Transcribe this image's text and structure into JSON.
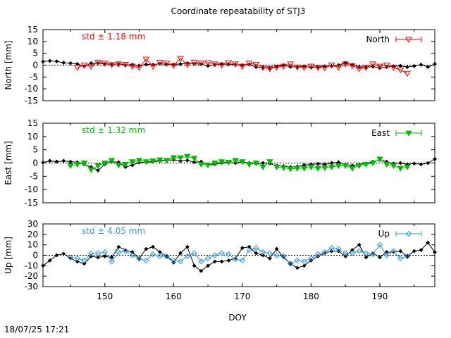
{
  "chart_data": [
    {
      "type": "line",
      "title": "Coordinate repeatability of STJ3",
      "ylabel": "North [mm]",
      "xlim": [
        141,
        198
      ],
      "ylim": [
        -15,
        15
      ],
      "yticks": [
        "15",
        "10",
        "5",
        "0",
        "-5",
        "-10",
        "-15"
      ],
      "annotation": "std ± 1.18 mm",
      "annotation_color": "#ff0000",
      "legend_position": "top-right",
      "series": [
        {
          "name": "",
          "color": "#000000",
          "marker": "diamond-filled",
          "x": [
            141,
            142,
            143,
            144,
            145,
            146,
            147,
            148,
            149,
            150,
            151,
            152,
            153,
            154,
            155,
            156,
            157,
            158,
            159,
            160,
            161,
            162,
            163,
            164,
            165,
            166,
            167,
            168,
            169,
            170,
            171,
            172,
            173,
            174,
            175,
            176,
            177,
            178,
            179,
            180,
            181,
            182,
            183,
            184,
            185,
            186,
            187,
            188,
            189,
            190,
            191,
            192,
            193,
            194,
            195,
            196,
            197,
            198
          ],
          "y": [
            1.5,
            1.8,
            1.6,
            1.0,
            0.8,
            0.5,
            -0.5,
            0.8,
            0.8,
            0.5,
            0.3,
            0.5,
            0.0,
            0.2,
            -0.2,
            0.3,
            0.2,
            0.6,
            0.3,
            0.2,
            0.5,
            0.8,
            0.6,
            0.4,
            -0.3,
            0.2,
            0.5,
            0.3,
            0.2,
            0.0,
            0.3,
            -0.8,
            -1.0,
            -1.3,
            -0.6,
            0.0,
            -0.7,
            -0.8,
            -0.5,
            -1.0,
            -0.8,
            -0.5,
            -0.4,
            0.0,
            1.0,
            0.2,
            -0.7,
            -0.9,
            -0.6,
            -1.2,
            -0.8,
            -0.5,
            -0.3,
            -0.8,
            -0.4,
            0.2,
            -0.8,
            0.5
          ]
        },
        {
          "name": "North",
          "color": "#ff0000",
          "marker": "triangle-down-open",
          "x": [
            146,
            147,
            148,
            149,
            150,
            151,
            152,
            153,
            154,
            155,
            156,
            157,
            158,
            159,
            160,
            161,
            162,
            163,
            164,
            165,
            166,
            167,
            168,
            169,
            170,
            171,
            172,
            173,
            174,
            175,
            176,
            177,
            178,
            179,
            180,
            181,
            182,
            183,
            184,
            185,
            186,
            187,
            188,
            189,
            190,
            191,
            192,
            193,
            194
          ],
          "y": [
            -1.0,
            0.0,
            -0.5,
            1.2,
            0.8,
            0.2,
            0.5,
            0.3,
            -0.5,
            -1.0,
            2.5,
            -0.5,
            1.2,
            0.8,
            -0.2,
            2.8,
            0.2,
            1.2,
            0.8,
            1.0,
            0.5,
            0.0,
            1.0,
            0.5,
            -0.5,
            0.8,
            0.3,
            -1.0,
            -1.5,
            -0.8,
            -0.5,
            0.5,
            -0.8,
            -1.0,
            -0.5,
            -1.0,
            -1.2,
            0.0,
            -1.0,
            0.5,
            -0.3,
            -1.5,
            -1.0,
            0.5,
            -0.5,
            0.0,
            -1.0,
            -2.0,
            -3.5
          ]
        }
      ]
    },
    {
      "type": "line",
      "title": "",
      "ylabel": "East [mm]",
      "xlim": [
        141,
        198
      ],
      "ylim": [
        -15,
        15
      ],
      "yticks": [
        "15",
        "10",
        "5",
        "0",
        "-5",
        "-10",
        "-15"
      ],
      "annotation": "std ± 1.32 mm",
      "annotation_color": "#00bb00",
      "legend_position": "top-right",
      "series": [
        {
          "name": "",
          "color": "#000000",
          "marker": "diamond-filled",
          "x": [
            141,
            142,
            143,
            144,
            145,
            146,
            147,
            148,
            149,
            150,
            151,
            152,
            153,
            154,
            155,
            156,
            157,
            158,
            159,
            160,
            161,
            162,
            163,
            164,
            165,
            166,
            167,
            168,
            169,
            170,
            171,
            172,
            173,
            174,
            175,
            176,
            177,
            178,
            179,
            180,
            181,
            182,
            183,
            184,
            185,
            186,
            187,
            188,
            189,
            190,
            191,
            192,
            193,
            194,
            195,
            196,
            197,
            198
          ],
          "y": [
            0.2,
            0.8,
            0.5,
            0.8,
            0.5,
            0.3,
            -0.5,
            -1.5,
            -2.8,
            -0.5,
            0.5,
            0.3,
            -1.5,
            -0.8,
            0.2,
            0.3,
            0.5,
            0.8,
            1.0,
            1.2,
            0.8,
            1.0,
            0.3,
            0.5,
            -0.8,
            -0.5,
            0.0,
            0.2,
            0.0,
            0.5,
            0.0,
            -0.3,
            0.0,
            -0.2,
            -1.0,
            -1.2,
            -1.5,
            -1.3,
            -0.8,
            -0.5,
            -0.3,
            -0.5,
            0.0,
            0.3,
            -0.5,
            -1.0,
            -0.5,
            -0.2,
            0.5,
            1.2,
            0.5,
            -0.2,
            0.0,
            -0.5,
            -0.2,
            -0.5,
            0.0,
            1.5
          ]
        },
        {
          "name": "East",
          "color": "#00bb00",
          "marker": "triangle-down-filled",
          "x": [
            145,
            146,
            147,
            148,
            149,
            150,
            151,
            152,
            153,
            154,
            155,
            156,
            157,
            158,
            159,
            160,
            161,
            162,
            163,
            164,
            165,
            166,
            167,
            168,
            169,
            170,
            171,
            172,
            173,
            174,
            175,
            176,
            177,
            178,
            179,
            180,
            181,
            182,
            183,
            184,
            185,
            186,
            187,
            188,
            189,
            190,
            191,
            192,
            193,
            194
          ],
          "y": [
            -1.0,
            -0.5,
            0.0,
            -2.5,
            -1.0,
            0.0,
            1.0,
            -0.8,
            -0.5,
            0.5,
            1.0,
            0.5,
            0.8,
            1.2,
            1.0,
            2.0,
            2.0,
            2.5,
            1.8,
            -0.5,
            -0.8,
            0.0,
            0.5,
            0.3,
            1.0,
            0.5,
            -0.5,
            0.0,
            -1.5,
            0.5,
            -1.5,
            -1.8,
            -2.2,
            -2.0,
            -2.0,
            -1.5,
            -2.0,
            -1.8,
            -1.5,
            -1.0,
            -1.0,
            -2.0,
            -1.0,
            -0.5,
            0.0,
            1.5,
            -0.5,
            -1.0,
            -2.0,
            -1.5
          ]
        }
      ]
    },
    {
      "type": "line",
      "title": "",
      "xlabel": "DOY",
      "ylabel": "Up [mm]",
      "xlim": [
        141,
        198
      ],
      "ylim": [
        -30,
        30
      ],
      "xticks": [
        "150",
        "160",
        "170",
        "180",
        "190"
      ],
      "yticks": [
        "30",
        "20",
        "10",
        "0",
        "-10",
        "-20",
        "-30"
      ],
      "annotation": "std ± 4.05 mm",
      "annotation_color": "#3399dd",
      "legend_position": "top-right",
      "series": [
        {
          "name": "",
          "color": "#000000",
          "marker": "diamond-filled",
          "x": [
            141,
            142,
            143,
            144,
            145,
            146,
            147,
            148,
            149,
            150,
            151,
            152,
            153,
            154,
            155,
            156,
            157,
            158,
            159,
            160,
            161,
            162,
            163,
            164,
            165,
            166,
            167,
            168,
            169,
            170,
            171,
            172,
            173,
            174,
            175,
            176,
            177,
            178,
            179,
            180,
            181,
            182,
            183,
            184,
            185,
            186,
            187,
            188,
            189,
            190,
            191,
            192,
            193,
            194,
            195,
            196,
            197,
            198
          ],
          "y": [
            -10.0,
            -5.0,
            0.0,
            1.5,
            -3.0,
            -6.0,
            -8.0,
            -1.0,
            -2.0,
            -1.0,
            -2.0,
            8.0,
            5.0,
            3.0,
            -3.0,
            6.0,
            8.0,
            3.0,
            -1.0,
            -7.0,
            2.0,
            8.0,
            -10.0,
            -15.0,
            -10.0,
            -6.0,
            -6.0,
            -5.0,
            -3.0,
            7.0,
            8.0,
            2.0,
            0.0,
            -3.0,
            6.0,
            -2.0,
            -8.0,
            -12.0,
            -10.0,
            -5.0,
            -1.0,
            2.0,
            4.0,
            4.0,
            -1.0,
            5.0,
            10.0,
            -2.0,
            2.0,
            -2.0,
            3.0,
            3.0,
            4.0,
            -1.0,
            4.0,
            5.0,
            12.0,
            3.0
          ]
        },
        {
          "name": "Up",
          "color": "#3399dd",
          "marker": "diamond-open",
          "x": [
            145,
            146,
            147,
            148,
            149,
            150,
            151,
            152,
            153,
            154,
            155,
            156,
            157,
            158,
            159,
            160,
            161,
            162,
            163,
            164,
            165,
            166,
            167,
            168,
            169,
            170,
            171,
            172,
            173,
            174,
            175,
            176,
            177,
            178,
            179,
            180,
            181,
            182,
            183,
            184,
            185,
            186,
            187,
            188,
            189,
            190,
            191,
            192,
            193,
            194
          ],
          "y": [
            -2.0,
            -3.0,
            -5.0,
            1.5,
            2.0,
            3.0,
            -6.0,
            3.0,
            4.0,
            0.0,
            -3.5,
            -5.0,
            1.0,
            -1.0,
            -1.0,
            -5.0,
            -6.0,
            -1.0,
            2.0,
            -6.0,
            -3.0,
            0.0,
            2.0,
            1.0,
            -4.0,
            -5.0,
            5.0,
            7.0,
            3.0,
            2.0,
            0.0,
            -1.0,
            -8.0,
            -5.0,
            -6.0,
            -3.0,
            1.0,
            3.0,
            7.0,
            6.0,
            2.0,
            2.0,
            4.0,
            2.0,
            1.0,
            10.0,
            0.0,
            4.0,
            -3.0,
            -1.0
          ]
        }
      ]
    }
  ],
  "footer": {
    "timestamp": "18/07/25 17:21"
  }
}
